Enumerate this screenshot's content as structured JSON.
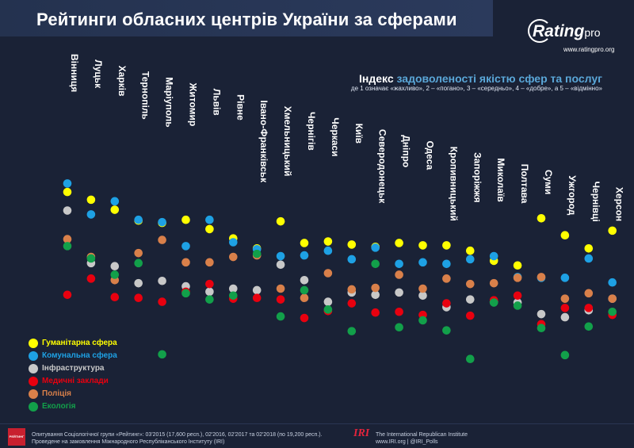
{
  "header": {
    "title": "Рейтинги обласних центрів України за сферами",
    "logo_main": "Rating",
    "logo_suffix": "pro",
    "website": "www.ratingpro.org"
  },
  "subtitle": {
    "prefix": "Індекс",
    "highlight": "задоволеності якістю сфер та послуг",
    "scale": "де 1 означає «жахливо», 2 – «погано», 3 – «середньо», 4 – «добре», а 5 – «відмінно»"
  },
  "colors": {
    "humanitarian": "#ffff00",
    "communal": "#1ea1e4",
    "infrastructure": "#c8c8c8",
    "medical": "#e8000f",
    "police": "#d9804a",
    "ecology": "#12a04a",
    "background": "#1a2236"
  },
  "chart_data": {
    "type": "scatter",
    "title": "Рейтинги обласних центрів України за сферами",
    "ylabel": "",
    "ylim": [
      1,
      5
    ],
    "grid": false,
    "legend_position": "bottom-left",
    "categories": [
      "Вінниця",
      "Луцьк",
      "Харків",
      "Тернопіль",
      "Маріуполь",
      "Житомир",
      "Львів",
      "Рівне",
      "Івано-Франківськ",
      "Хмельницький",
      "Чернігів",
      "Черкаси",
      "Київ",
      "Северодонецьк",
      "Дніпро",
      "Одеса",
      "Кропивницький",
      "Запоріжжя",
      "Миколаїв",
      "Полтава",
      "Суми",
      "Ужгород",
      "Чернівці",
      "Херсон"
    ],
    "series": [
      {
        "name": "Гуманітарна сфера",
        "color": "#ffff00",
        "values": [
          3.85,
          3.75,
          3.62,
          3.48,
          3.45,
          3.49,
          3.37,
          3.25,
          3.12,
          3.47,
          3.19,
          3.21,
          3.17,
          3.14,
          3.19,
          3.16,
          3.16,
          3.09,
          2.96,
          2.9,
          3.51,
          3.29,
          3.12,
          3.35
        ]
      },
      {
        "name": "Комунальна сфера",
        "color": "#1ea1e4",
        "values": [
          3.96,
          3.56,
          3.73,
          3.49,
          3.46,
          3.15,
          3.49,
          3.2,
          3.11,
          3.02,
          3.03,
          3.09,
          2.98,
          3.13,
          2.92,
          2.94,
          2.92,
          2.98,
          3.02,
          2.75,
          2.74,
          2.74,
          2.99,
          2.68
        ]
      },
      {
        "name": "Інфраструктура",
        "color": "#c8c8c8",
        "values": [
          3.61,
          2.93,
          2.89,
          2.67,
          2.7,
          2.63,
          2.56,
          2.6,
          2.58,
          2.91,
          2.71,
          2.43,
          2.55,
          2.52,
          2.55,
          2.51,
          2.36,
          2.46,
          2.43,
          2.42,
          2.27,
          2.23,
          2.32,
          2.47
        ]
      },
      {
        "name": "Медичні заклади",
        "color": "#e8000f",
        "values": [
          2.52,
          2.73,
          2.49,
          2.48,
          2.43,
          2.56,
          2.66,
          2.47,
          2.48,
          2.46,
          2.22,
          2.31,
          2.41,
          2.29,
          2.3,
          2.26,
          2.41,
          2.25,
          2.45,
          2.51,
          2.14,
          2.35,
          2.35,
          2.26
        ]
      },
      {
        "name": "Поліція",
        "color": "#d9804a",
        "values": [
          3.24,
          3.01,
          2.71,
          3.06,
          3.23,
          2.94,
          2.94,
          3.01,
          3.03,
          2.6,
          2.48,
          2.8,
          2.59,
          2.61,
          2.78,
          2.6,
          2.73,
          2.66,
          2.67,
          2.74,
          2.75,
          2.47,
          2.54,
          2.47
        ]
      },
      {
        "name": "Екологія",
        "color": "#12a04a",
        "values": [
          3.15,
          2.99,
          2.78,
          2.93,
          1.75,
          2.54,
          2.46,
          2.51,
          3.05,
          2.24,
          2.58,
          2.33,
          2.05,
          2.92,
          2.1,
          2.19,
          2.06,
          1.69,
          2.42,
          2.38,
          2.09,
          1.74,
          2.11,
          2.3
        ]
      }
    ]
  },
  "footer": {
    "badge": "РЕЙТИНГ",
    "note_line1": "Опитування Соціологічної групи «Рейтинг»: 03'2015 (17,600 респ.), 02'2016, 02'2017 та 02'2018 (по 19,200 респ.).",
    "note_line2": "Проведене на замовлення Міжнародного Республіканського Інституту (IRI)",
    "iri_logo": "IRI",
    "iri_name": "The International Republican Institute",
    "iri_web": "www.IRI.org | @IRI_Polls"
  }
}
